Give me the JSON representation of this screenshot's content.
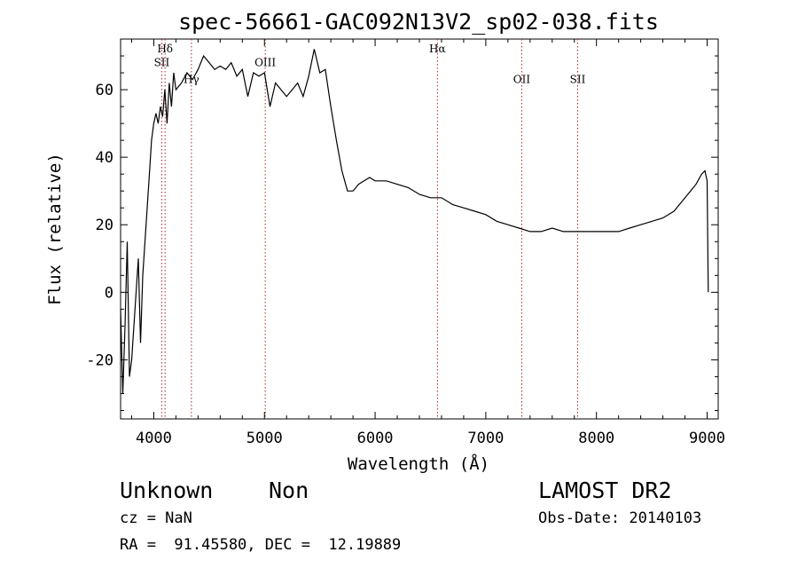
{
  "chart_data": {
    "type": "line",
    "title": "spec-56661-GAC092N13V2_sp02-038.fits",
    "xlabel": "Wavelength (Å)",
    "ylabel": "Flux (relative)",
    "xlim": [
      3700,
      9100
    ],
    "ylim": [
      -37.5,
      75
    ],
    "x_ticks": [
      4000,
      5000,
      6000,
      7000,
      8000,
      9000
    ],
    "y_ticks": [
      -20,
      0,
      20,
      40,
      60
    ],
    "grid": false,
    "line_color": "#000000",
    "marker_color": "#b22222",
    "series": [
      {
        "x": [
          3700,
          3720,
          3740,
          3760,
          3780,
          3800,
          3820,
          3840,
          3860,
          3880,
          3900,
          3920,
          3940,
          3960,
          3980,
          4000,
          4020,
          4040,
          4060,
          4080,
          4100,
          4120,
          4140,
          4160,
          4180,
          4200,
          4250,
          4300,
          4350,
          4400,
          4450,
          4500,
          4550,
          4600,
          4650,
          4700,
          4750,
          4800,
          4850,
          4900,
          4950,
          5000,
          5050,
          5100,
          5150,
          5200,
          5250,
          5300,
          5350,
          5400,
          5450,
          5500,
          5550,
          5600,
          5650,
          5700,
          5750,
          5800,
          5850,
          5900,
          5950,
          6000,
          6100,
          6200,
          6300,
          6400,
          6500,
          6600,
          6700,
          6800,
          6900,
          7000,
          7100,
          7200,
          7300,
          7400,
          7500,
          7600,
          7700,
          7800,
          7900,
          8000,
          8100,
          8200,
          8300,
          8400,
          8500,
          8600,
          8700,
          8800,
          8850,
          8900,
          8950,
          8980,
          9000,
          9010
        ],
        "y": [
          -5,
          -30,
          -10,
          15,
          -25,
          -20,
          -10,
          0,
          10,
          -15,
          5,
          15,
          25,
          35,
          45,
          50,
          53,
          50,
          55,
          52,
          60,
          50,
          62,
          55,
          65,
          60,
          62,
          65,
          63,
          66,
          70,
          68,
          66,
          67,
          66,
          68,
          64,
          66,
          58,
          65,
          64,
          65,
          55,
          62,
          60,
          58,
          60,
          62,
          58,
          64,
          72,
          65,
          66,
          55,
          45,
          36,
          30,
          30,
          32,
          33,
          34,
          33,
          33,
          32,
          31,
          29,
          28,
          28,
          26,
          25,
          24,
          23,
          21,
          20,
          19,
          18,
          18,
          19,
          18,
          18,
          18,
          18,
          18,
          18,
          19,
          20,
          21,
          22,
          24,
          28,
          30,
          32,
          35,
          36,
          33,
          0
        ]
      }
    ],
    "line_markers": [
      {
        "label": "Hδ",
        "x": 4102,
        "label_y": 71
      },
      {
        "label": "SII",
        "x": 4072,
        "label_y": 67
      },
      {
        "label": "Hγ",
        "x": 4340,
        "label_y": 62
      },
      {
        "label": "OIII",
        "x": 5007,
        "label_y": 67
      },
      {
        "label": "Hα",
        "x": 6563,
        "label_y": 71
      },
      {
        "label": "OII",
        "x": 7325,
        "label_y": 62
      },
      {
        "label": "SII",
        "x": 7830,
        "label_y": 62
      }
    ]
  },
  "info": {
    "object_class": "Unknown",
    "object_subclass": "Non",
    "survey": "LAMOST DR2",
    "cz": "cz = NaN",
    "obs_date": "Obs-Date: 20140103",
    "coords": "RA =  91.45580, DEC =  12.19889"
  }
}
